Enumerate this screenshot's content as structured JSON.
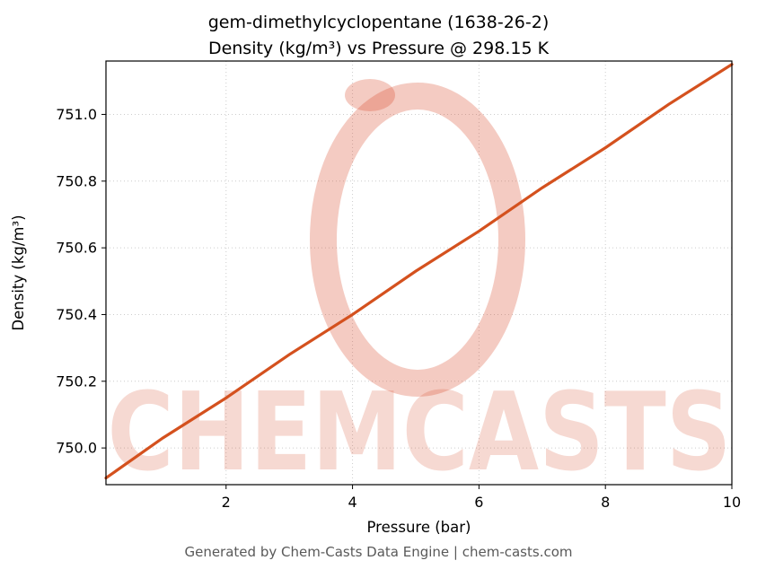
{
  "chart_data": {
    "type": "line",
    "title_line1": "gem-dimethylcyclopentane (1638-26-2)",
    "title_line2": "Density (kg/m³) vs Pressure @ 298.15 K",
    "xlabel": "Pressure (bar)",
    "ylabel": "Density (kg/m³)",
    "x": [
      0.1,
      1,
      2,
      3,
      4,
      5,
      6,
      7,
      8,
      9,
      10
    ],
    "y": [
      749.91,
      750.03,
      750.15,
      750.28,
      750.4,
      750.53,
      750.65,
      750.78,
      750.9,
      751.03,
      751.15
    ],
    "xlim": [
      0.1,
      10
    ],
    "ylim": [
      749.89,
      751.16
    ],
    "xticks": [
      2,
      4,
      6,
      8,
      10
    ],
    "xtick_labels": [
      "2",
      "4",
      "6",
      "8",
      "10"
    ],
    "yticks": [
      750.0,
      750.2,
      750.4,
      750.6,
      750.8,
      751.0
    ],
    "ytick_labels": [
      "750.0",
      "750.2",
      "750.4",
      "750.6",
      "750.8",
      "751.0"
    ],
    "line_color": "#d4511e",
    "grid": true,
    "legend_position": "none"
  },
  "watermark": {
    "text": "CHEMCASTS",
    "color": "#d64523",
    "text_opacity": 0.2,
    "ring_opacity": 0.28
  },
  "footer": {
    "text": "Generated by Chem-Casts Data Engine | chem-casts.com"
  }
}
